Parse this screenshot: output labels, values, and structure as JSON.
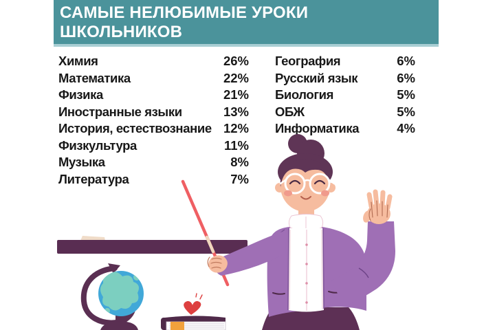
{
  "header": {
    "title_line1": "САМЫЕ НЕЛЮБИМЫЕ УРОКИ",
    "title_line2": "ШКОЛЬНИКОВ"
  },
  "lists": {
    "left": [
      {
        "label": "Химия",
        "value": "26%"
      },
      {
        "label": "Математика",
        "value": "22%"
      },
      {
        "label": "Физика",
        "value": "21%"
      },
      {
        "label": "Иностранные языки",
        "value": "13%"
      },
      {
        "label": "История, естествознание",
        "value": "12%"
      },
      {
        "label": "Физкультура",
        "value": "11%"
      },
      {
        "label": "Музыка",
        "value": "8%"
      },
      {
        "label": "Литература",
        "value": "7%"
      }
    ],
    "right": [
      {
        "label": "География",
        "value": "6%"
      },
      {
        "label": "Русский язык",
        "value": "6%"
      },
      {
        "label": "Биология",
        "value": "5%"
      },
      {
        "label": "ОБЖ",
        "value": "5%"
      },
      {
        "label": "Информатика",
        "value": "4%"
      }
    ]
  },
  "illustration": {
    "items": [
      "teacher-with-pointer",
      "chalkboard-shelf",
      "chalk",
      "globe",
      "books",
      "heart"
    ]
  },
  "colors": {
    "header_bg": "#4B939B",
    "header_border": "#A8CED3",
    "text": "#181818",
    "cardigan_purple": "#9F6FB5",
    "hair_plum": "#5F3556",
    "skirt_plum": "#5D3055",
    "shelf_plum": "#592D52",
    "skin": "#F6BC9F",
    "pointer_red": "#EF5F63",
    "globe_water": "#41A8D8",
    "globe_land": "#7CCFC0",
    "book_tab_orange": "#F2A13C",
    "heart_red": "#DD4040",
    "chalk_beige": "#F0DCC8"
  },
  "chart_data": {
    "type": "table",
    "title": "САМЫЕ НЕЛЮБИМЫЕ УРОКИ ШКОЛЬНИКОВ",
    "unit": "%",
    "categories": [
      "Химия",
      "Математика",
      "Физика",
      "Иностранные языки",
      "История, естествознание",
      "Физкультура",
      "Музыка",
      "Литература",
      "География",
      "Русский язык",
      "Биология",
      "ОБЖ",
      "Информатика"
    ],
    "values": [
      26,
      22,
      21,
      13,
      12,
      11,
      8,
      7,
      6,
      6,
      5,
      5,
      4
    ]
  }
}
